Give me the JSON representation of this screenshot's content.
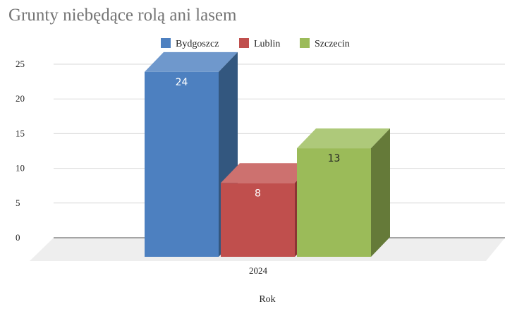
{
  "chart_data": {
    "type": "bar",
    "title": "Grunty niebędące rolą ani lasem",
    "xlabel": "Rok",
    "ylabel": "",
    "categories": [
      "2024"
    ],
    "series": [
      {
        "name": "Bydgoszcz",
        "values": [
          24
        ],
        "color": "#4d80c0",
        "top_color": "#6f98cc",
        "side_color": "#33577f",
        "label_color": "#ffffff"
      },
      {
        "name": "Lublin",
        "values": [
          8
        ],
        "color": "#c04f4d",
        "top_color": "#cd716f",
        "side_color": "#8b3534",
        "label_color": "#ffffff"
      },
      {
        "name": "Szczecin",
        "values": [
          13
        ],
        "color": "#9bbb59",
        "top_color": "#aec97a",
        "side_color": "#657a39",
        "label_color": "#222222"
      }
    ],
    "yticks": [
      0,
      5,
      10,
      15,
      20,
      25
    ],
    "ylim": [
      0,
      25
    ],
    "grid": true,
    "legend_position": "top"
  }
}
